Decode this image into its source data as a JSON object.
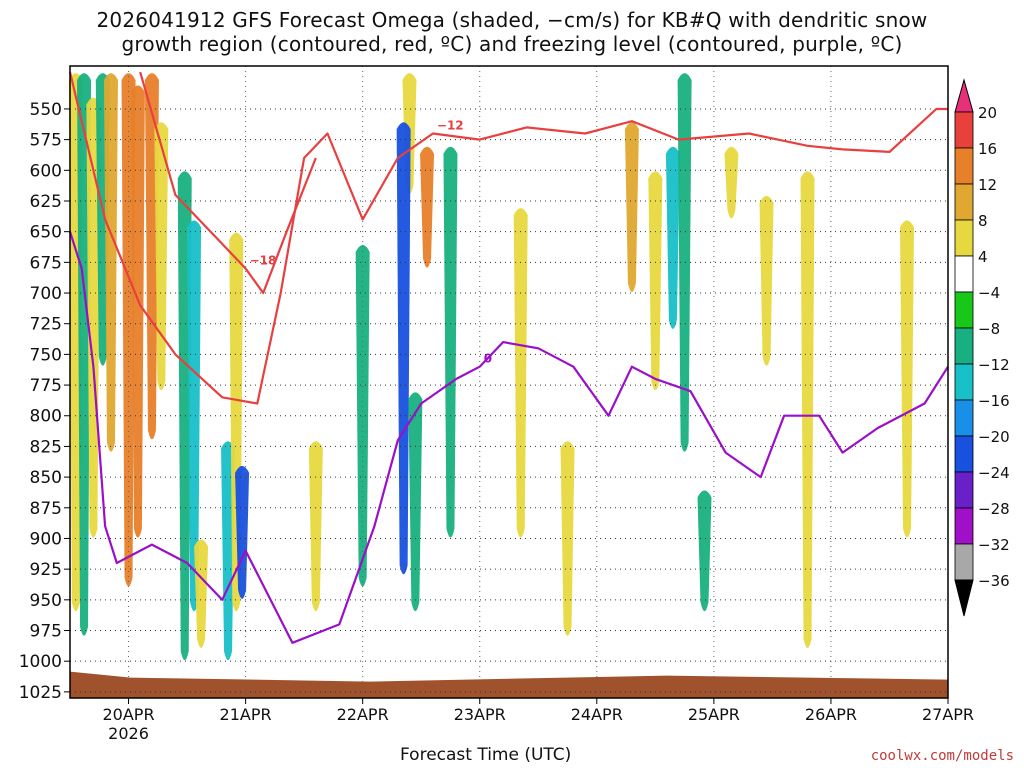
{
  "title": {
    "line1": "2026041912 GFS Forecast Omega (shaded, −cm/s) for KB#Q with dendritic snow",
    "line2": "growth region (contoured, red, ºC) and freezing level (contoured, purple, ºC)"
  },
  "credit": "coolwx.com/models",
  "chart_data": {
    "type": "heatmap",
    "title": "2026041912 GFS Forecast Omega (shaded, −cm/s) for KB#Q with dendritic snow growth region (contoured, red, ºC) and freezing level (contoured, purple, ºC)",
    "xlabel": "Forecast Time (UTC)",
    "ylabel": "",
    "x_ticks": [
      "20APR",
      "21APR",
      "22APR",
      "23APR",
      "24APR",
      "25APR",
      "26APR",
      "27APR"
    ],
    "x_tick_days": [
      0,
      1,
      2,
      3,
      4,
      5,
      6,
      7
    ],
    "x_sub_label": "2026",
    "xlim": [
      -0.5,
      7.0
    ],
    "y_ticks": [
      550,
      575,
      600,
      625,
      650,
      675,
      700,
      725,
      750,
      775,
      800,
      825,
      850,
      875,
      900,
      925,
      950,
      975,
      1000,
      1025
    ],
    "ylim": [
      1030,
      515
    ],
    "colorbar": {
      "labels": [
        "20",
        "16",
        "12",
        "8",
        "4",
        "−4",
        "−8",
        "−12",
        "−16",
        "−20",
        "−24",
        "−28",
        "−32",
        "−36"
      ],
      "colors": [
        "#e8307a",
        "#e8403a",
        "#e8802a",
        "#e0a830",
        "#e8d840",
        "#ffffff",
        "#18c818",
        "#18b080",
        "#18c0c8",
        "#1890e8",
        "#1850e0",
        "#6a20c8",
        "#a010c8",
        "#a8a8a8",
        "#000000"
      ]
    },
    "shading": [
      {
        "t": -0.45,
        "p1": 520,
        "p2": 960,
        "v": 6
      },
      {
        "t": -0.38,
        "p1": 520,
        "p2": 980,
        "v": -10
      },
      {
        "t": -0.3,
        "p1": 540,
        "p2": 900,
        "v": 5
      },
      {
        "t": -0.22,
        "p1": 520,
        "p2": 760,
        "v": -8
      },
      {
        "t": -0.15,
        "p1": 520,
        "p2": 830,
        "v": 10
      },
      {
        "t": 0.0,
        "p1": 520,
        "p2": 940,
        "v": 12
      },
      {
        "t": 0.08,
        "p1": 530,
        "p2": 900,
        "v": 14
      },
      {
        "t": 0.2,
        "p1": 520,
        "p2": 820,
        "v": 13
      },
      {
        "t": 0.28,
        "p1": 560,
        "p2": 780,
        "v": 6
      },
      {
        "t": 0.48,
        "p1": 600,
        "p2": 1000,
        "v": -10
      },
      {
        "t": 0.56,
        "p1": 640,
        "p2": 960,
        "v": -14
      },
      {
        "t": 0.62,
        "p1": 900,
        "p2": 990,
        "v": 5
      },
      {
        "t": 0.85,
        "p1": 820,
        "p2": 1000,
        "v": -12
      },
      {
        "t": 0.92,
        "p1": 650,
        "p2": 960,
        "v": 5
      },
      {
        "t": 0.97,
        "p1": 840,
        "p2": 950,
        "v": -22
      },
      {
        "t": 1.6,
        "p1": 820,
        "p2": 960,
        "v": 6
      },
      {
        "t": 2.0,
        "p1": 660,
        "p2": 940,
        "v": -8
      },
      {
        "t": 2.4,
        "p1": 520,
        "p2": 620,
        "v": 6
      },
      {
        "t": 2.35,
        "p1": 560,
        "p2": 930,
        "v": -22
      },
      {
        "t": 2.45,
        "p1": 780,
        "p2": 960,
        "v": -10
      },
      {
        "t": 2.55,
        "p1": 580,
        "p2": 680,
        "v": 12
      },
      {
        "t": 2.75,
        "p1": 580,
        "p2": 900,
        "v": -8
      },
      {
        "t": 3.35,
        "p1": 630,
        "p2": 900,
        "v": 5
      },
      {
        "t": 3.75,
        "p1": 820,
        "p2": 980,
        "v": 5
      },
      {
        "t": 4.3,
        "p1": 560,
        "p2": 700,
        "v": 10
      },
      {
        "t": 4.5,
        "p1": 600,
        "p2": 780,
        "v": 6
      },
      {
        "t": 4.65,
        "p1": 580,
        "p2": 730,
        "v": -14
      },
      {
        "t": 4.75,
        "p1": 520,
        "p2": 830,
        "v": -8
      },
      {
        "t": 4.92,
        "p1": 860,
        "p2": 960,
        "v": -8
      },
      {
        "t": 5.15,
        "p1": 580,
        "p2": 640,
        "v": 5
      },
      {
        "t": 5.45,
        "p1": 620,
        "p2": 760,
        "v": 5
      },
      {
        "t": 5.8,
        "p1": 600,
        "p2": 990,
        "v": 5
      },
      {
        "t": 6.65,
        "p1": 640,
        "p2": 900,
        "v": 5
      }
    ],
    "contours": [
      {
        "name": "dgz -12C",
        "color": "#e84040",
        "label": "−12",
        "points": [
          [
            -0.5,
            520
          ],
          [
            -0.2,
            640
          ],
          [
            0.1,
            710
          ],
          [
            0.4,
            750
          ],
          [
            0.8,
            785
          ],
          [
            1.1,
            790
          ],
          [
            1.3,
            700
          ],
          [
            1.5,
            590
          ],
          [
            1.7,
            570
          ],
          [
            2.0,
            640
          ],
          [
            2.3,
            590
          ],
          [
            2.6,
            570
          ],
          [
            3.0,
            575
          ],
          [
            3.4,
            565
          ],
          [
            3.9,
            570
          ],
          [
            4.3,
            560
          ],
          [
            4.7,
            575
          ],
          [
            5.3,
            570
          ],
          [
            5.8,
            580
          ],
          [
            6.1,
            583
          ],
          [
            6.5,
            585
          ],
          [
            6.9,
            550
          ],
          [
            7.0,
            550
          ]
        ]
      },
      {
        "name": "dgz -18C",
        "color": "#e84040",
        "label": "−18",
        "points": [
          [
            0.1,
            520
          ],
          [
            0.4,
            620
          ],
          [
            0.8,
            660
          ],
          [
            1.0,
            680
          ],
          [
            1.15,
            700
          ],
          [
            1.35,
            650
          ],
          [
            1.6,
            590
          ]
        ]
      },
      {
        "name": "freezing level 0C",
        "color": "#9a10c8",
        "label": "0",
        "points": [
          [
            -0.5,
            650
          ],
          [
            -0.4,
            680
          ],
          [
            -0.3,
            760
          ],
          [
            -0.2,
            890
          ],
          [
            -0.1,
            920
          ],
          [
            0.2,
            905
          ],
          [
            0.5,
            920
          ],
          [
            0.8,
            950
          ],
          [
            1.0,
            910
          ],
          [
            1.4,
            985
          ],
          [
            1.8,
            970
          ],
          [
            2.1,
            890
          ],
          [
            2.3,
            820
          ],
          [
            2.5,
            790
          ],
          [
            2.8,
            770
          ],
          [
            3.0,
            760
          ],
          [
            3.2,
            740
          ],
          [
            3.5,
            745
          ],
          [
            3.8,
            760
          ],
          [
            4.1,
            800
          ],
          [
            4.3,
            760
          ],
          [
            4.5,
            770
          ],
          [
            4.8,
            780
          ],
          [
            5.1,
            830
          ],
          [
            5.4,
            850
          ],
          [
            5.6,
            800
          ],
          [
            5.9,
            800
          ],
          [
            6.1,
            830
          ],
          [
            6.4,
            810
          ],
          [
            6.8,
            790
          ],
          [
            7.0,
            760
          ]
        ]
      }
    ],
    "ground": {
      "color": "#a0522d",
      "pressure": 1015
    }
  }
}
